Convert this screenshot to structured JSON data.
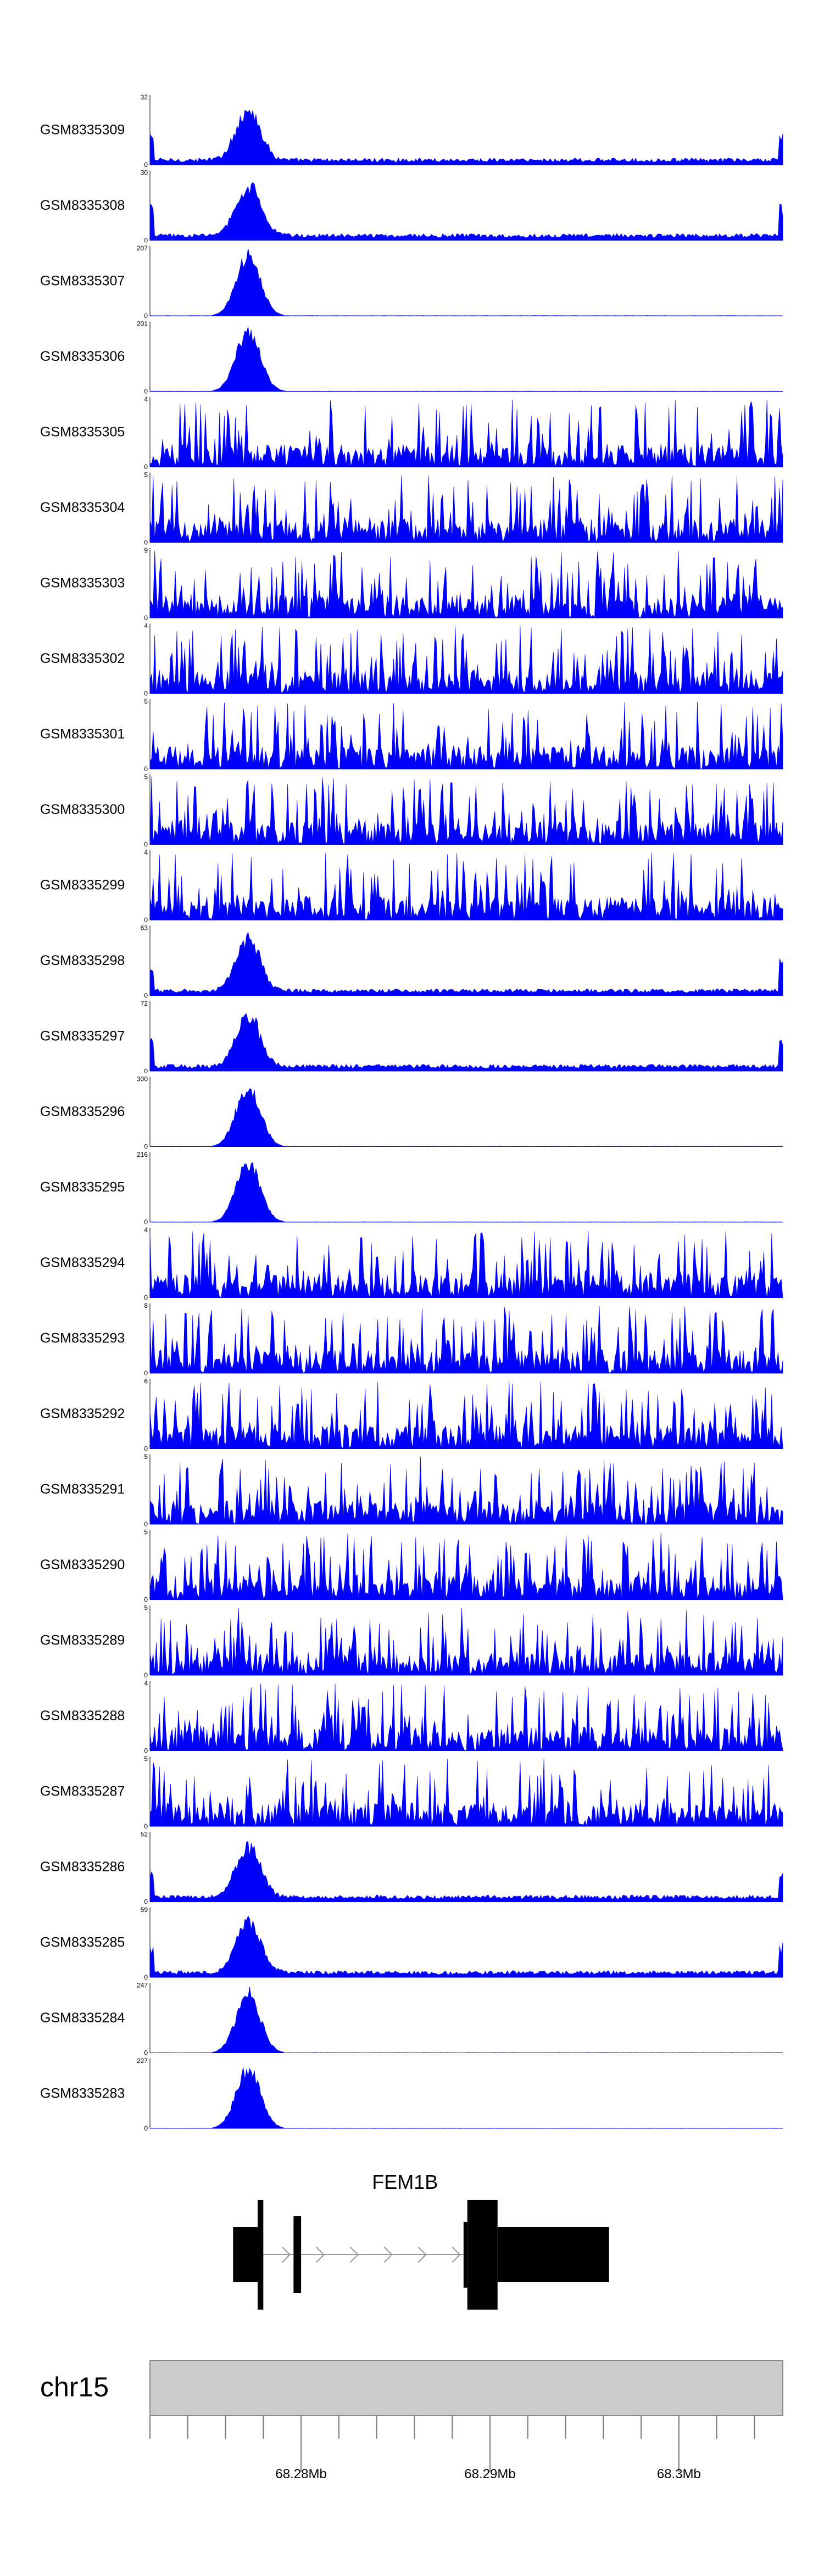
{
  "colors": {
    "signal": "#0000ff",
    "axis": "#000000",
    "ideogram_fill": "#cccccc",
    "ideogram_stroke": "#888888",
    "intron": "#999999",
    "gene": "#000000"
  },
  "chart_data": {
    "type": "area",
    "title": "",
    "region": {
      "chrom": "chr15",
      "start": 68272000,
      "end": 68305500
    },
    "peak_center": 68277200,
    "tracks": [
      {
        "name": "GSM8335309",
        "max": "32",
        "ymax": 32,
        "kind": "bg"
      },
      {
        "name": "GSM8335308",
        "max": "30",
        "ymax": 30,
        "kind": "bg"
      },
      {
        "name": "GSM8335307",
        "max": "207",
        "ymax": 207,
        "kind": "peak"
      },
      {
        "name": "GSM8335306",
        "max": "201",
        "ymax": 201,
        "kind": "peak"
      },
      {
        "name": "GSM8335305",
        "max": "4",
        "ymax": 4,
        "kind": "noise"
      },
      {
        "name": "GSM8335304",
        "max": "5",
        "ymax": 5,
        "kind": "noise"
      },
      {
        "name": "GSM8335303",
        "max": "9",
        "ymax": 9,
        "kind": "noise"
      },
      {
        "name": "GSM8335302",
        "max": "4",
        "ymax": 4,
        "kind": "noise"
      },
      {
        "name": "GSM8335301",
        "max": "5",
        "ymax": 5,
        "kind": "noise"
      },
      {
        "name": "GSM8335300",
        "max": "5",
        "ymax": 5,
        "kind": "noise"
      },
      {
        "name": "GSM8335299",
        "max": "4",
        "ymax": 4,
        "kind": "noise"
      },
      {
        "name": "GSM8335298",
        "max": "63",
        "ymax": 63,
        "kind": "bg"
      },
      {
        "name": "GSM8335297",
        "max": "72",
        "ymax": 72,
        "kind": "bg"
      },
      {
        "name": "GSM8335296",
        "max": "300",
        "ymax": 300,
        "kind": "peak"
      },
      {
        "name": "GSM8335295",
        "max": "216",
        "ymax": 216,
        "kind": "peak"
      },
      {
        "name": "GSM8335294",
        "max": "4",
        "ymax": 4,
        "kind": "noise"
      },
      {
        "name": "GSM8335293",
        "max": "8",
        "ymax": 8,
        "kind": "noise"
      },
      {
        "name": "GSM8335292",
        "max": "6",
        "ymax": 6,
        "kind": "noise"
      },
      {
        "name": "GSM8335291",
        "max": "5",
        "ymax": 5,
        "kind": "noise"
      },
      {
        "name": "GSM8335290",
        "max": "5",
        "ymax": 5,
        "kind": "noise"
      },
      {
        "name": "GSM8335289",
        "max": "5",
        "ymax": 5,
        "kind": "noise"
      },
      {
        "name": "GSM8335288",
        "max": "4",
        "ymax": 4,
        "kind": "noise"
      },
      {
        "name": "GSM8335287",
        "max": "5",
        "ymax": 5,
        "kind": "noise"
      },
      {
        "name": "GSM8335286",
        "max": "52",
        "ymax": 52,
        "kind": "bg"
      },
      {
        "name": "GSM8335285",
        "max": "59",
        "ymax": 59,
        "kind": "bg"
      },
      {
        "name": "GSM8335284",
        "max": "247",
        "ymax": 247,
        "kind": "peak"
      },
      {
        "name": "GSM8335283",
        "max": "227",
        "ymax": 227,
        "kind": "peak"
      }
    ],
    "y_min_label": "0",
    "gene": {
      "name": "FEM1B",
      "intron": [
        68277500,
        68288600
      ],
      "exons": [
        {
          "start": 68277700,
          "end": 68278500,
          "strand_side": "left",
          "height": "full"
        },
        {
          "start": 68276400,
          "end": 68277700,
          "height": "half"
        },
        {
          "start": 68279600,
          "end": 68280000,
          "height": "half"
        },
        {
          "start": 68288600,
          "end": 68288800,
          "height": "thin"
        },
        {
          "start": 68288800,
          "end": 68290400,
          "height": "full"
        },
        {
          "start": 68290400,
          "end": 68296300,
          "height": "half"
        }
      ]
    },
    "chromosome": "chr15",
    "ticks": [
      {
        "pos": 68280000,
        "label": "68.28Mb"
      },
      {
        "pos": 68290000,
        "label": "68.29Mb"
      },
      {
        "pos": 68300000,
        "label": "68.3Mb"
      }
    ],
    "minor_tick_step": 2000
  }
}
